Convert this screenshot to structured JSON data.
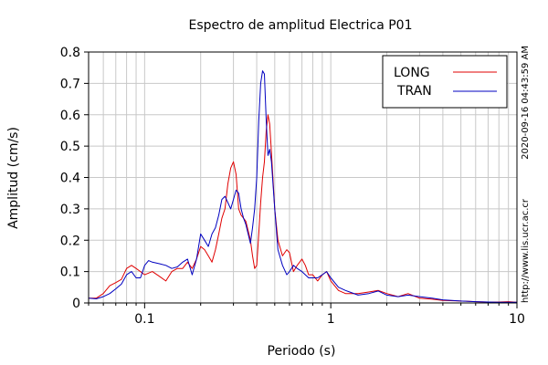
{
  "chart_data": {
    "type": "line",
    "title": "Espectro de amplitud Electrica P01",
    "xlabel": "Periodo (s)",
    "ylabel": "Amplitud (cm/s)",
    "x_scale": "log",
    "xlim": [
      0.05,
      10
    ],
    "ylim": [
      0,
      0.8
    ],
    "x_ticks": [
      {
        "value": 0.1,
        "label": "0.1"
      },
      {
        "value": 1,
        "label": "1"
      },
      {
        "value": 10,
        "label": "10"
      }
    ],
    "y_ticks": [
      {
        "value": 0,
        "label": "0"
      },
      {
        "value": 0.1,
        "label": "0.1"
      },
      {
        "value": 0.2,
        "label": "0.2"
      },
      {
        "value": 0.3,
        "label": "0.3"
      },
      {
        "value": 0.4,
        "label": "0.4"
      },
      {
        "value": 0.5,
        "label": "0.5"
      },
      {
        "value": 0.6,
        "label": "0.6"
      },
      {
        "value": 0.7,
        "label": "0.7"
      },
      {
        "value": 0.8,
        "label": "0.8"
      }
    ],
    "grid": true,
    "legend_position": "top-right",
    "series": [
      {
        "name": "LONG",
        "color": "#e00000",
        "points": [
          [
            0.05,
            0.015
          ],
          [
            0.055,
            0.015
          ],
          [
            0.06,
            0.03
          ],
          [
            0.065,
            0.055
          ],
          [
            0.07,
            0.065
          ],
          [
            0.075,
            0.075
          ],
          [
            0.08,
            0.11
          ],
          [
            0.085,
            0.12
          ],
          [
            0.09,
            0.11
          ],
          [
            0.095,
            0.1
          ],
          [
            0.1,
            0.09
          ],
          [
            0.11,
            0.1
          ],
          [
            0.12,
            0.085
          ],
          [
            0.13,
            0.07
          ],
          [
            0.14,
            0.1
          ],
          [
            0.15,
            0.11
          ],
          [
            0.16,
            0.11
          ],
          [
            0.17,
            0.13
          ],
          [
            0.18,
            0.11
          ],
          [
            0.19,
            0.14
          ],
          [
            0.2,
            0.18
          ],
          [
            0.21,
            0.17
          ],
          [
            0.22,
            0.15
          ],
          [
            0.23,
            0.13
          ],
          [
            0.24,
            0.17
          ],
          [
            0.25,
            0.22
          ],
          [
            0.26,
            0.27
          ],
          [
            0.27,
            0.3
          ],
          [
            0.28,
            0.38
          ],
          [
            0.29,
            0.43
          ],
          [
            0.3,
            0.45
          ],
          [
            0.31,
            0.41
          ],
          [
            0.32,
            0.3
          ],
          [
            0.33,
            0.28
          ],
          [
            0.34,
            0.27
          ],
          [
            0.35,
            0.26
          ],
          [
            0.36,
            0.23
          ],
          [
            0.37,
            0.2
          ],
          [
            0.38,
            0.15
          ],
          [
            0.39,
            0.11
          ],
          [
            0.4,
            0.12
          ],
          [
            0.41,
            0.22
          ],
          [
            0.42,
            0.32
          ],
          [
            0.43,
            0.4
          ],
          [
            0.44,
            0.45
          ],
          [
            0.45,
            0.55
          ],
          [
            0.46,
            0.6
          ],
          [
            0.47,
            0.57
          ],
          [
            0.48,
            0.48
          ],
          [
            0.5,
            0.3
          ],
          [
            0.52,
            0.2
          ],
          [
            0.55,
            0.15
          ],
          [
            0.58,
            0.17
          ],
          [
            0.6,
            0.16
          ],
          [
            0.63,
            0.1
          ],
          [
            0.66,
            0.12
          ],
          [
            0.7,
            0.14
          ],
          [
            0.73,
            0.12
          ],
          [
            0.76,
            0.09
          ],
          [
            0.8,
            0.09
          ],
          [
            0.85,
            0.07
          ],
          [
            0.9,
            0.09
          ],
          [
            0.95,
            0.1
          ],
          [
            1.0,
            0.07
          ],
          [
            1.1,
            0.04
          ],
          [
            1.2,
            0.03
          ],
          [
            1.4,
            0.03
          ],
          [
            1.6,
            0.035
          ],
          [
            1.8,
            0.04
          ],
          [
            2.0,
            0.03
          ],
          [
            2.3,
            0.02
          ],
          [
            2.6,
            0.03
          ],
          [
            3.0,
            0.015
          ],
          [
            3.5,
            0.012
          ],
          [
            4.0,
            0.008
          ],
          [
            5.0,
            0.006
          ],
          [
            6.0,
            0.004
          ],
          [
            7.0,
            0.003
          ],
          [
            8.0,
            0.003
          ],
          [
            9.0,
            0.004
          ],
          [
            10.0,
            0.002
          ]
        ]
      },
      {
        "name": "TRAN",
        "color": "#0000c0",
        "points": [
          [
            0.05,
            0.015
          ],
          [
            0.055,
            0.013
          ],
          [
            0.06,
            0.02
          ],
          [
            0.065,
            0.03
          ],
          [
            0.07,
            0.045
          ],
          [
            0.075,
            0.06
          ],
          [
            0.08,
            0.09
          ],
          [
            0.085,
            0.1
          ],
          [
            0.09,
            0.08
          ],
          [
            0.095,
            0.08
          ],
          [
            0.1,
            0.12
          ],
          [
            0.105,
            0.135
          ],
          [
            0.11,
            0.13
          ],
          [
            0.12,
            0.125
          ],
          [
            0.13,
            0.12
          ],
          [
            0.14,
            0.11
          ],
          [
            0.15,
            0.115
          ],
          [
            0.16,
            0.13
          ],
          [
            0.17,
            0.14
          ],
          [
            0.18,
            0.09
          ],
          [
            0.19,
            0.14
          ],
          [
            0.2,
            0.22
          ],
          [
            0.21,
            0.2
          ],
          [
            0.22,
            0.18
          ],
          [
            0.23,
            0.22
          ],
          [
            0.24,
            0.24
          ],
          [
            0.25,
            0.28
          ],
          [
            0.26,
            0.33
          ],
          [
            0.27,
            0.34
          ],
          [
            0.28,
            0.32
          ],
          [
            0.29,
            0.3
          ],
          [
            0.3,
            0.33
          ],
          [
            0.31,
            0.36
          ],
          [
            0.32,
            0.35
          ],
          [
            0.33,
            0.3
          ],
          [
            0.34,
            0.27
          ],
          [
            0.35,
            0.25
          ],
          [
            0.36,
            0.22
          ],
          [
            0.37,
            0.19
          ],
          [
            0.38,
            0.24
          ],
          [
            0.39,
            0.3
          ],
          [
            0.4,
            0.4
          ],
          [
            0.41,
            0.58
          ],
          [
            0.42,
            0.7
          ],
          [
            0.43,
            0.74
          ],
          [
            0.44,
            0.73
          ],
          [
            0.45,
            0.58
          ],
          [
            0.46,
            0.47
          ],
          [
            0.47,
            0.49
          ],
          [
            0.48,
            0.45
          ],
          [
            0.5,
            0.3
          ],
          [
            0.52,
            0.17
          ],
          [
            0.55,
            0.12
          ],
          [
            0.58,
            0.09
          ],
          [
            0.6,
            0.1
          ],
          [
            0.63,
            0.12
          ],
          [
            0.66,
            0.11
          ],
          [
            0.7,
            0.1
          ],
          [
            0.73,
            0.09
          ],
          [
            0.76,
            0.08
          ],
          [
            0.8,
            0.08
          ],
          [
            0.85,
            0.08
          ],
          [
            0.9,
            0.09
          ],
          [
            0.95,
            0.1
          ],
          [
            1.0,
            0.08
          ],
          [
            1.1,
            0.05
          ],
          [
            1.2,
            0.04
          ],
          [
            1.4,
            0.025
          ],
          [
            1.6,
            0.03
          ],
          [
            1.8,
            0.038
          ],
          [
            2.0,
            0.025
          ],
          [
            2.3,
            0.02
          ],
          [
            2.6,
            0.025
          ],
          [
            3.0,
            0.02
          ],
          [
            3.5,
            0.015
          ],
          [
            4.0,
            0.01
          ],
          [
            5.0,
            0.006
          ],
          [
            6.0,
            0.004
          ],
          [
            7.0,
            0.003
          ],
          [
            8.0,
            0.002
          ],
          [
            9.0,
            0.002
          ],
          [
            10.0,
            0.002
          ]
        ]
      }
    ]
  },
  "side_text": {
    "timestamp": "2020-09-16 04:43:59 AM",
    "url": "http://www.lis.ucr.ac.cr"
  }
}
